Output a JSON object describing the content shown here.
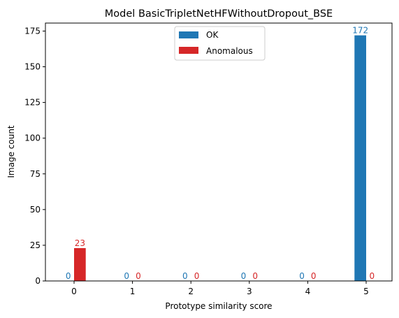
{
  "chart_data": {
    "type": "bar",
    "title": "Model BasicTripletNetHFWithoutDropout_BSE",
    "xlabel": "Prototype similarity score",
    "ylabel": "Image count",
    "categories": [
      "0",
      "1",
      "2",
      "3",
      "4",
      "5"
    ],
    "ylim": [
      0,
      180.6
    ],
    "yticks": [
      0,
      25,
      50,
      75,
      100,
      125,
      150,
      175
    ],
    "grid": false,
    "legend_position": "top-center",
    "series": [
      {
        "name": "OK",
        "color": "#1f77b4",
        "values": [
          0,
          0,
          0,
          0,
          0,
          172
        ]
      },
      {
        "name": "Anomalous",
        "color": "#d62728",
        "values": [
          23,
          0,
          0,
          0,
          0,
          0
        ]
      }
    ]
  }
}
